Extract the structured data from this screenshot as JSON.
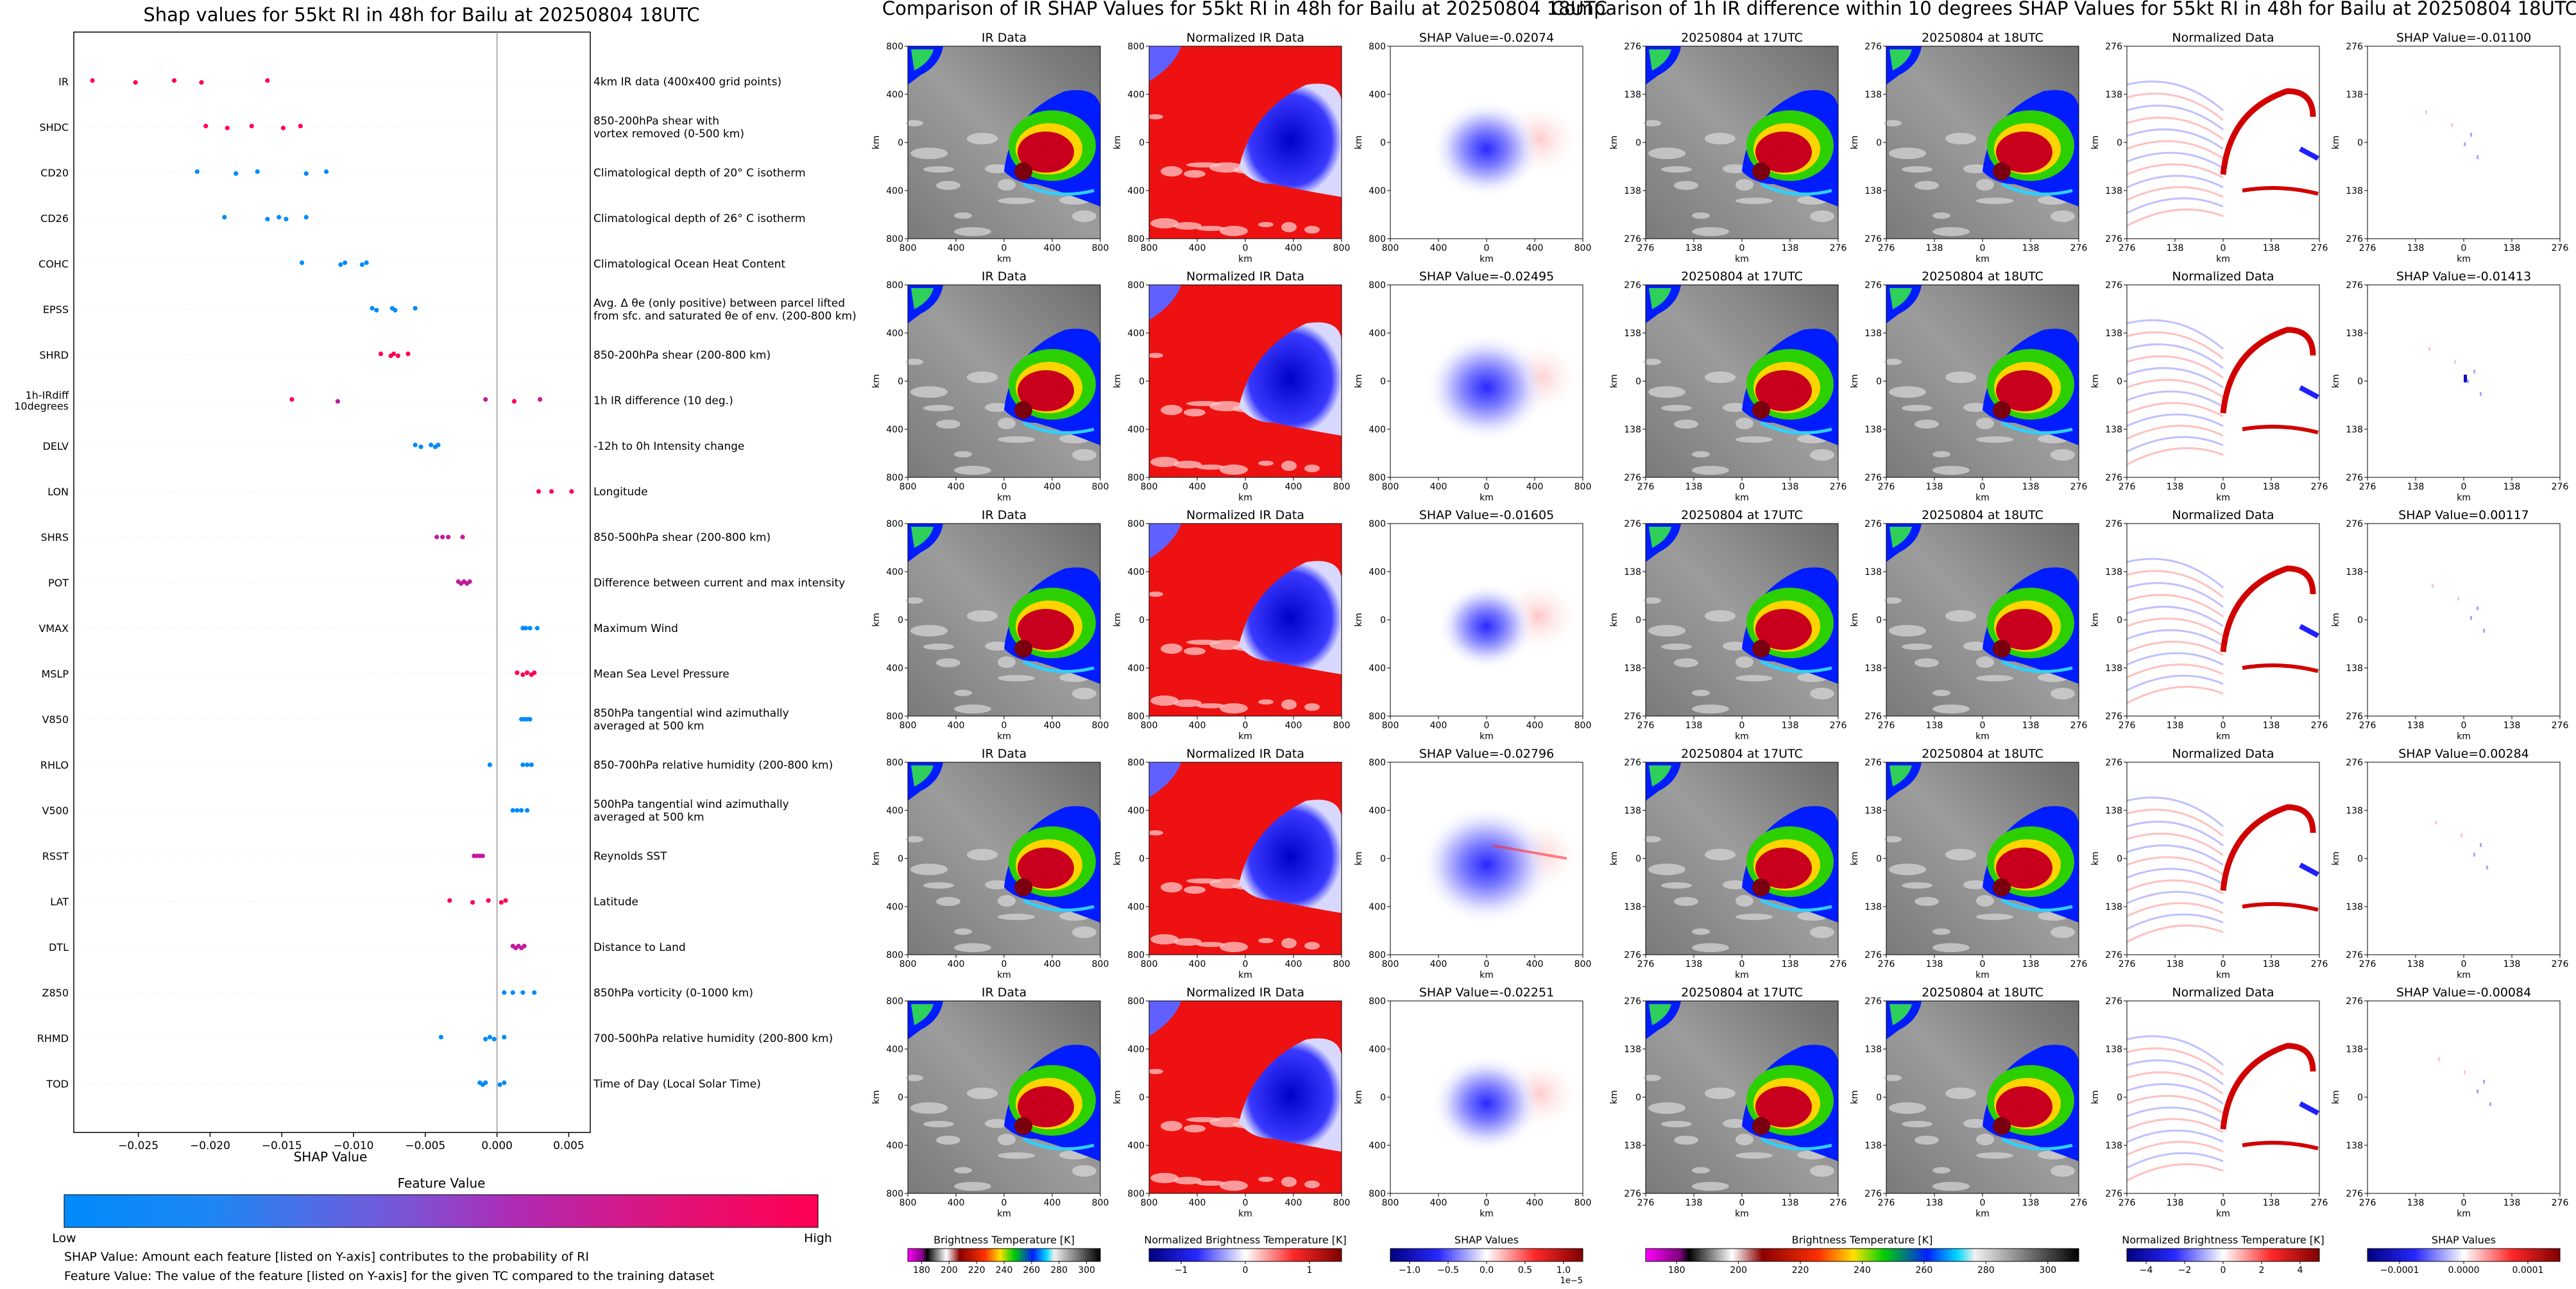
{
  "colors": {
    "feature_low": "#008bfb",
    "feature_high": "#ff0052",
    "feature_mid": "#c11b9b",
    "gray_bg": "#8f8f8f",
    "cloud_red": "#c8001e",
    "cloud_green": "#2cd000",
    "cloud_blue": "#001cff",
    "norm_red": "#ee1111",
    "norm_blue": "#0a0ae8",
    "shap_blue": "#1a1aff",
    "shap_red": "#ff3030"
  },
  "chart_data": [
    {
      "type": "scatter",
      "subtype": "beeswarm",
      "title": "Shap values for 55kt RI in 48h for Bailu at 20250804 18UTC",
      "xlabel": "SHAP Value",
      "xlim": [
        -0.0295,
        0.0065
      ],
      "xticks": [
        -0.025,
        -0.02,
        -0.015,
        -0.01,
        -0.005,
        0.0,
        0.005
      ],
      "xtick_labels": [
        "−0.025",
        "−0.020",
        "−0.015",
        "−0.010",
        "−0.005",
        "0.000",
        "0.005"
      ],
      "features": [
        {
          "name": "IR",
          "description": "4km IR data (400x400 grid points)",
          "color": "high",
          "values": [
            -0.0282,
            -0.0252,
            -0.0225,
            -0.0206,
            -0.016
          ]
        },
        {
          "name": "SHDC",
          "description": "850-200hPa shear with\nvortex removed (0-500 km)",
          "color": "high",
          "values": [
            -0.0203,
            -0.0188,
            -0.0171,
            -0.0149,
            -0.0137
          ]
        },
        {
          "name": "CD20",
          "description": "Climatological depth of 20° C isotherm",
          "color": "low",
          "values": [
            -0.0209,
            -0.0182,
            -0.0167,
            -0.0133,
            -0.0119
          ]
        },
        {
          "name": "CD26",
          "description": "Climatological depth of 26° C isotherm",
          "color": "low",
          "values": [
            -0.019,
            -0.016,
            -0.0152,
            -0.0147,
            -0.0133
          ]
        },
        {
          "name": "COHC",
          "description": "Climatological Ocean Heat Content",
          "color": "low",
          "values": [
            -0.0136,
            -0.0109,
            -0.0106,
            -0.0094,
            -0.0091
          ]
        },
        {
          "name": "EPSS",
          "description": "Avg. Δ θe (only positive) between parcel lifted\nfrom sfc. and saturated θe of env. (200-800 km)",
          "color": "low",
          "values": [
            -0.0087,
            -0.0084,
            -0.0073,
            -0.0071,
            -0.0057
          ]
        },
        {
          "name": "SHRD",
          "description": "850-200hPa shear (200-800 km)",
          "color": "high",
          "values": [
            -0.0081,
            -0.0074,
            -0.0072,
            -0.0069,
            -0.0062
          ]
        },
        {
          "name": "1h-IRdiff\n10degrees",
          "description": "1h IR difference (10 deg.)",
          "color": "mixed",
          "values": [
            -0.0143,
            -0.0111,
            -0.0008,
            0.0012,
            0.003
          ]
        },
        {
          "name": "DELV",
          "description": "-12h to 0h Intensity change",
          "color": "low",
          "values": [
            -0.0057,
            -0.0053,
            -0.0046,
            -0.0043,
            -0.0041
          ]
        },
        {
          "name": "LON",
          "description": "Longitude",
          "color": "high",
          "values": [
            0.0029,
            0.0038,
            0.0052
          ]
        },
        {
          "name": "SHRS",
          "description": "850-500hPa shear (200-800 km)",
          "color": "mid",
          "values": [
            -0.0042,
            -0.0038,
            -0.0034,
            -0.0024
          ]
        },
        {
          "name": "POT",
          "description": "Difference between current and max intensity",
          "color": "mid",
          "values": [
            -0.0027,
            -0.0025,
            -0.0023,
            -0.0021,
            -0.0019
          ]
        },
        {
          "name": "VMAX",
          "description": "Maximum Wind",
          "color": "low",
          "values": [
            0.0018,
            0.002,
            0.0023,
            0.0028
          ]
        },
        {
          "name": "MSLP",
          "description": "Mean Sea Level Pressure",
          "color": "high",
          "values": [
            0.0014,
            0.0018,
            0.0021,
            0.0024,
            0.0026
          ]
        },
        {
          "name": "V850",
          "description": "850hPa tangential wind azimuthally\naveraged at 500 km",
          "color": "low",
          "values": [
            0.0017,
            0.0019,
            0.0021,
            0.0023
          ]
        },
        {
          "name": "RHLO",
          "description": "850-700hPa relative humidity (200-800 km)",
          "color": "low",
          "values": [
            -0.0005,
            0.0018,
            0.0021,
            0.0024
          ]
        },
        {
          "name": "V500",
          "description": "500hPa tangential wind azimuthally\naveraged at 500 km",
          "color": "low",
          "values": [
            0.0011,
            0.0014,
            0.0017,
            0.0021
          ]
        },
        {
          "name": "RSST",
          "description": "Reynolds SST",
          "color": "mid",
          "values": [
            -0.0016,
            -0.0014,
            -0.0012,
            -0.001
          ]
        },
        {
          "name": "LAT",
          "description": "Latitude",
          "color": "high",
          "values": [
            -0.0033,
            -0.0017,
            -0.0006,
            0.0003,
            0.0006
          ]
        },
        {
          "name": "DTL",
          "description": "Distance to Land",
          "color": "mid",
          "values": [
            0.0011,
            0.0013,
            0.0015,
            0.0017,
            0.0019
          ]
        },
        {
          "name": "Z850",
          "description": "850hPa vorticity (0-1000 km)",
          "color": "low",
          "values": [
            0.0005,
            0.0011,
            0.0018,
            0.0026
          ]
        },
        {
          "name": "RHMD",
          "description": "700-500hPa relative humidity (200-800 km)",
          "color": "low",
          "values": [
            -0.0039,
            -0.0008,
            -0.0005,
            -0.0002,
            0.0005
          ]
        },
        {
          "name": "TOD",
          "description": "Time of Day (Local Solar Time)",
          "color": "low",
          "values": [
            -0.0012,
            -0.001,
            -0.0008,
            0.0002,
            0.0005
          ]
        }
      ],
      "colorbar": {
        "title": "Feature Value",
        "low_label": "Low",
        "high_label": "High"
      }
    },
    {
      "type": "heatmap",
      "title": "Comparison of IR SHAP Values for 55kt RI in 48h for Bailu at 20250804 18UTC",
      "xlabel": "km",
      "ylabel": "km",
      "tick_labels": [
        "800",
        "400",
        "0",
        "400",
        "800"
      ],
      "column_titles": [
        "IR Data",
        "Normalized IR Data"
      ],
      "shap_titles": [
        "SHAP Value=-0.02074",
        "SHAP Value=-0.02495",
        "SHAP Value=-0.01605",
        "SHAP Value=-0.02796",
        "SHAP Value=-0.02251"
      ],
      "colorbars": [
        {
          "label": "Brightness Temperature [K]",
          "ticks": [
            "180",
            "200",
            "220",
            "240",
            "260",
            "280",
            "300"
          ]
        },
        {
          "label": "Normalized Brightness Temperature [K]",
          "ticks": [
            "−1",
            "0",
            "1"
          ]
        },
        {
          "label": "SHAP Values",
          "ticks": [
            "−1.0",
            "−0.5",
            "0.0",
            "0.5",
            "1.0"
          ],
          "exponent": "1e−5"
        }
      ]
    },
    {
      "type": "heatmap",
      "title": "Comparison of 1h IR difference within 10 degrees SHAP Values for 55kt RI in 48h for Bailu at 20250804 18UTC",
      "xlabel": "km",
      "ylabel": "km",
      "tick_labels": [
        "276",
        "138",
        "0",
        "138",
        "276"
      ],
      "column_titles": [
        "20250804 at 17UTC",
        "20250804 at 18UTC",
        "Normalized Data"
      ],
      "shap_titles": [
        "SHAP Value=-0.01100",
        "SHAP Value=-0.01413",
        "SHAP Value=0.00117",
        "SHAP Value=0.00284",
        "SHAP Value=-0.00084"
      ],
      "colorbars": [
        {
          "label": "Brightness Temperature [K]",
          "ticks": [
            "180",
            "200",
            "220",
            "240",
            "260",
            "280",
            "300"
          ]
        },
        {
          "label": "Normalized Brightness Temperature [K]",
          "ticks": [
            "−4",
            "−2",
            "0",
            "2",
            "4"
          ]
        },
        {
          "label": "SHAP Values",
          "ticks": [
            "−0.0001",
            "0.0000",
            "0.0001"
          ]
        }
      ]
    }
  ],
  "footnotes": [
    "SHAP Value: Amount each feature [listed on Y-axis] contributes to the probability of RI",
    "Feature Value: The value of the feature [listed on Y-axis] for the given TC compared to the training dataset"
  ]
}
